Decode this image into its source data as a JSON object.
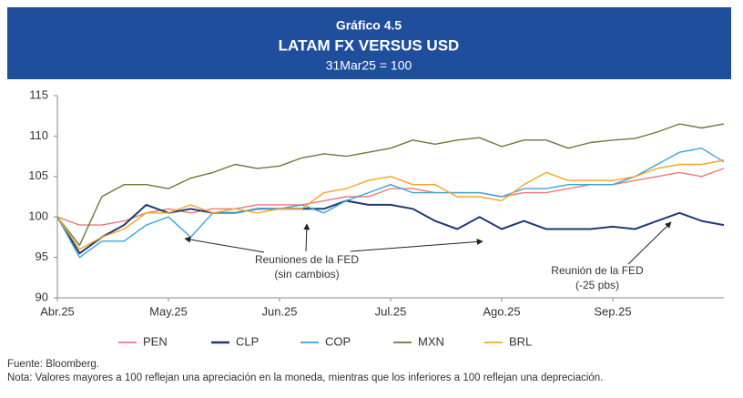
{
  "chart_data": {
    "type": "line",
    "label": "Gráfico 4.5",
    "title": "LATAM FX VERSUS USD",
    "subtitle": "31Mar25 = 100",
    "x": [
      0,
      0.2,
      0.4,
      0.6,
      0.8,
      1,
      1.2,
      1.4,
      1.6,
      1.8,
      2,
      2.2,
      2.4,
      2.6,
      2.8,
      3,
      3.2,
      3.4,
      3.6,
      3.8,
      4,
      4.2,
      4.4,
      4.6,
      4.8,
      5,
      5.2,
      5.4,
      5.6,
      5.8,
      6
    ],
    "xlim": [
      0,
      6
    ],
    "xticks": [
      {
        "value": 0,
        "label": "Abr.25"
      },
      {
        "value": 1,
        "label": "May.25"
      },
      {
        "value": 2,
        "label": "Jun.25"
      },
      {
        "value": 3,
        "label": "Jul.25"
      },
      {
        "value": 4,
        "label": "Ago.25"
      },
      {
        "value": 5,
        "label": "Sep.25"
      }
    ],
    "ylim": [
      90,
      115
    ],
    "yticks": [
      90,
      95,
      100,
      105,
      110,
      115
    ],
    "grid": false,
    "legend": "bottom",
    "series": [
      {
        "name": "PEN",
        "color": "#f07878",
        "values": [
          100,
          99,
          99,
          99.5,
          100.5,
          101,
          100.5,
          101,
          101,
          101.5,
          101.5,
          101.5,
          102,
          102.5,
          102.5,
          103.5,
          103.5,
          103,
          103,
          103,
          102.5,
          103,
          103,
          103.5,
          104,
          104,
          104.5,
          105,
          105.5,
          105,
          106
        ]
      },
      {
        "name": "CLP",
        "color": "#1f3a7a",
        "values": [
          100,
          95.5,
          97.5,
          99,
          101.5,
          100.5,
          101,
          100.5,
          100.5,
          101,
          101,
          101,
          101,
          102,
          101.5,
          101.5,
          101,
          99.5,
          98.5,
          100,
          98.5,
          99.5,
          98.5,
          98.5,
          98.5,
          98.8,
          98.5,
          99.5,
          100.5,
          99.5,
          99
        ]
      },
      {
        "name": "COP",
        "color": "#39a6d6",
        "values": [
          100,
          95,
          97,
          97,
          99,
          100,
          97.5,
          100.5,
          100.5,
          101,
          101,
          101.5,
          100.5,
          102,
          103,
          104,
          103,
          103,
          103,
          103,
          102.5,
          103.5,
          103.5,
          104,
          104,
          104,
          105,
          106.5,
          108,
          108.5,
          106.8
        ]
      },
      {
        "name": "MXN",
        "color": "#6b7a3a",
        "values": [
          100,
          96.5,
          102.5,
          104,
          104,
          103.5,
          104.8,
          105.5,
          106.5,
          106,
          106.3,
          107.3,
          107.8,
          107.5,
          108,
          108.5,
          109.5,
          109,
          109.5,
          109.8,
          108.7,
          109.5,
          109.5,
          108.5,
          109.2,
          109.5,
          109.7,
          110.5,
          111.5,
          111,
          111.5
        ]
      },
      {
        "name": "BRL",
        "color": "#f5a623",
        "values": [
          100,
          96,
          97.5,
          98.5,
          100.5,
          100.5,
          101.5,
          100.5,
          101,
          100.5,
          101,
          101,
          103,
          103.5,
          104.5,
          105,
          104,
          104,
          102.5,
          102.5,
          102,
          104,
          105.5,
          104.5,
          104.5,
          104.5,
          105,
          106,
          106.5,
          106.5,
          107
        ]
      }
    ],
    "annotations": [
      {
        "lines": [
          "Reuniones de la FED",
          "(sin cambios)"
        ]
      },
      {
        "lines": [
          "Reunión de la FED",
          "(-25 pbs)"
        ]
      }
    ],
    "source": "Fuente: Bloomberg.",
    "note": "Nota: Valores mayores a 100 reflejan una apreciación en la moneda, mientras que los inferiores a 100 reflejan una depreciación."
  }
}
